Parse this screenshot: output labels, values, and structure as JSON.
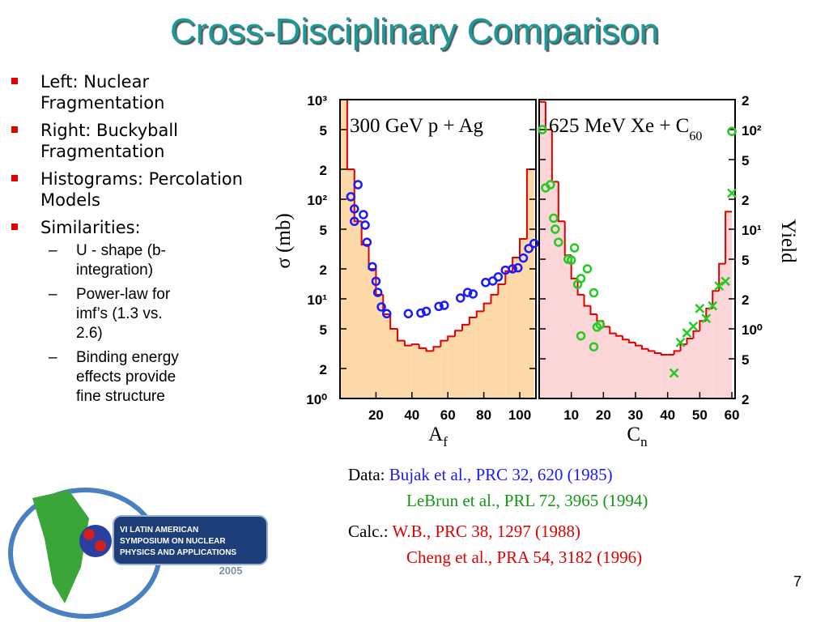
{
  "title": "Cross-Disciplinary Comparison",
  "bullets": [
    "Left: Nuclear Fragmentation",
    "Right: Buckyball Fragmentation",
    "Histograms: Percolation Models",
    "Similarities:"
  ],
  "sub_bullets": [
    "U - shape (b-integration)",
    "Power-law for imf’s (1.3 vs. 2.6)",
    "Binding energy effects provide fine structure"
  ],
  "citations": {
    "data_label": "Data:",
    "data": [
      "Bujak et al., PRC 32, 620 (1985)",
      "LeBrun et al., PRL 72, 3965 (1994)"
    ],
    "calc_label": "Calc.:",
    "calc": [
      "W.B., PRC 38, 1297 (1988)",
      "Cheng et al., PRA 54, 3182 (1996)"
    ]
  },
  "page_number": "7",
  "logo": {
    "lines": [
      "VI LATIN AMERICAN",
      "SYMPOSIUM ON NUCLEAR",
      "PHYSICS AND APPLICATIONS"
    ],
    "year": "2005"
  },
  "chart_data": [
    {
      "type": "histogram",
      "annotation": "300 GeV p + Ag",
      "annotation_sub": "",
      "ylabel": "σ (mb)",
      "xlabel": "A",
      "xlabel_sub": "f",
      "log_y": true,
      "axis_side": "left",
      "fill": "#fdd9a8",
      "color": "#e00000",
      "xlim": [
        0,
        109
      ],
      "xticks": [
        20,
        40,
        60,
        80,
        100
      ],
      "ylim": [
        1,
        1000
      ],
      "yticks": [
        {
          "value": 1,
          "label": "10⁰"
        },
        2,
        5,
        {
          "value": 10,
          "label": "10¹"
        },
        {
          "value": 20,
          "label": "2"
        },
        {
          "value": 50,
          "label": "5"
        },
        {
          "value": 100,
          "label": "10²"
        },
        {
          "value": 200,
          "label": "2"
        },
        {
          "value": 500,
          "label": "5"
        },
        {
          "value": 1000,
          "label": "10³"
        }
      ],
      "bins": [
        0,
        4,
        8,
        12,
        16,
        20,
        24,
        28,
        32,
        36,
        40,
        44,
        48,
        52,
        56,
        60,
        64,
        68,
        72,
        76,
        80,
        84,
        88,
        92,
        96,
        100,
        104,
        108
      ],
      "values": [
        1000,
        200,
        60,
        35,
        20,
        11,
        7,
        5,
        3.8,
        3.4,
        3.5,
        3.2,
        3.0,
        3.3,
        3.8,
        4.2,
        4.8,
        5.5,
        6.5,
        7.5,
        9,
        11,
        14,
        19,
        26,
        40,
        200
      ],
      "series": [
        {
          "color": "#1a1aff",
          "marker": "circle",
          "x": [
            6,
            10,
            8,
            8,
            13,
            14,
            15,
            18,
            20,
            21,
            23,
            26,
            38,
            45,
            48,
            55,
            58,
            67,
            71,
            74,
            81,
            85,
            88,
            92,
            96,
            99,
            102,
            105,
            108
          ],
          "values": [
            106,
            140,
            80,
            60,
            70,
            55,
            37,
            21,
            15,
            11.6,
            8.3,
            7.1,
            7.1,
            7.2,
            7.5,
            8.4,
            8.6,
            10.2,
            11.6,
            11.2,
            14.6,
            15.1,
            16.6,
            19.4,
            20,
            20.5,
            25.7,
            32,
            36
          ]
        }
      ]
    },
    {
      "type": "histogram",
      "annotation": "625 MeV Xe + C",
      "annotation_sub": "60",
      "ylabel": "Yield",
      "xlabel": "C",
      "xlabel_sub": "n",
      "log_y": true,
      "axis_side": "right",
      "fill": "#fbd5d8",
      "color": "#e00000",
      "xlim": [
        0,
        61
      ],
      "xticks": [
        10,
        20,
        30,
        40,
        50,
        60
      ],
      "ylim": [
        0.2,
        200
      ],
      "yticks": [
        {
          "value": 0.2,
          "label": "2"
        },
        {
          "value": 0.5,
          "label": "5"
        },
        {
          "value": 1,
          "label": "10⁰"
        },
        2,
        5,
        {
          "value": 10,
          "label": "10¹"
        },
        {
          "value": 20,
          "label": "2"
        },
        {
          "value": 50,
          "label": "5"
        },
        {
          "value": 100,
          "label": "10²"
        },
        {
          "value": 200,
          "label": "2"
        }
      ],
      "bins": [
        0,
        2,
        4,
        6,
        8,
        10,
        12,
        14,
        16,
        18,
        20,
        22,
        24,
        26,
        28,
        30,
        32,
        34,
        36,
        38,
        40,
        42,
        44,
        46,
        48,
        50,
        52,
        54,
        56,
        58,
        60
      ],
      "values": [
        190,
        100,
        30,
        12,
        5.5,
        3.2,
        2.2,
        1.7,
        1.4,
        1.2,
        1.05,
        0.9,
        0.85,
        0.78,
        0.73,
        0.68,
        0.63,
        0.6,
        0.57,
        0.55,
        0.55,
        0.6,
        0.7,
        0.8,
        0.95,
        1.2,
        1.6,
        2.4,
        4.5,
        15
      ],
      "series": [
        {
          "color": "#22cc22",
          "marker": "circle",
          "x": [
            1,
            2,
            3.5,
            4.5,
            5,
            6,
            9,
            10,
            11,
            12,
            13,
            15,
            17,
            18,
            19,
            13,
            17,
            60
          ],
          "values": [
            100,
            26,
            28,
            12.9,
            10,
            7.4,
            5,
            4.9,
            6.5,
            2.8,
            3.2,
            4,
            2.3,
            1.04,
            1.1,
            0.85,
            0.66,
            96
          ]
        },
        {
          "color": "#22cc22",
          "marker": "cross",
          "x": [
            42,
            44,
            46,
            48,
            50,
            52,
            54,
            56,
            58,
            60
          ],
          "values": [
            0.36,
            0.73,
            0.91,
            1.06,
            1.6,
            1.27,
            1.7,
            2.7,
            3,
            23
          ]
        }
      ]
    }
  ]
}
